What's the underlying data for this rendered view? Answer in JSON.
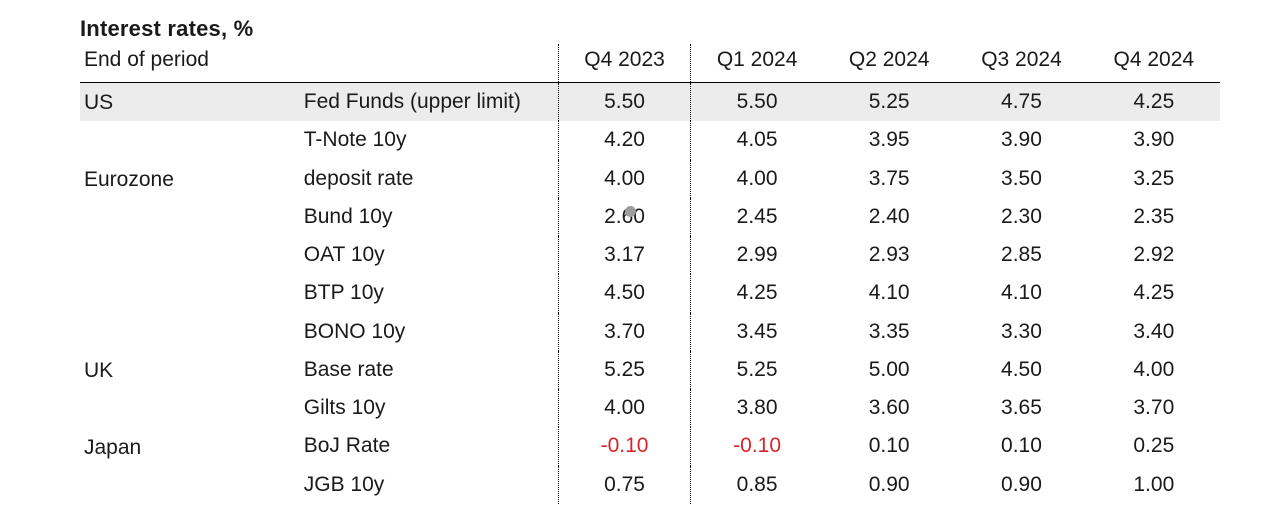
{
  "title": "Interest rates, %",
  "subhead": "End of period",
  "periods": [
    "Q4 2023",
    "Q1 2024",
    "Q2 2024",
    "Q3 2024",
    "Q4 2024"
  ],
  "colors": {
    "text": "#1a1a1a",
    "neg": "#d62728",
    "shade": "#ececec",
    "marker": "#9c9c9c",
    "line": "#000000",
    "bg": "#ffffff"
  },
  "regions": {
    "us": "US",
    "ez": "Eurozone",
    "uk": "UK",
    "jp": "Japan"
  },
  "rows": {
    "fedfunds": {
      "label": "Fed Funds (upper limit)",
      "v": [
        "5.50",
        "5.50",
        "5.25",
        "4.75",
        "4.25"
      ]
    },
    "tnote": {
      "label": "T-Note 10y",
      "v": [
        "4.20",
        "4.05",
        "3.95",
        "3.90",
        "3.90"
      ]
    },
    "deposit": {
      "label": "deposit rate",
      "v": [
        "4.00",
        "4.00",
        "3.75",
        "3.50",
        "3.25"
      ]
    },
    "bund": {
      "label": "Bund 10y",
      "v": [
        "2.60",
        "2.45",
        "2.40",
        "2.30",
        "2.35"
      ]
    },
    "oat": {
      "label": "OAT 10y",
      "v": [
        "3.17",
        "2.99",
        "2.93",
        "2.85",
        "2.92"
      ]
    },
    "btp": {
      "label": "BTP 10y",
      "v": [
        "4.50",
        "4.25",
        "4.10",
        "4.10",
        "4.25"
      ]
    },
    "bono": {
      "label": "BONO 10y",
      "v": [
        "3.70",
        "3.45",
        "3.35",
        "3.30",
        "3.40"
      ]
    },
    "base": {
      "label": "Base rate",
      "v": [
        "5.25",
        "5.25",
        "5.00",
        "4.50",
        "4.00"
      ]
    },
    "gilts": {
      "label": "Gilts 10y",
      "v": [
        "4.00",
        "3.80",
        "3.60",
        "3.65",
        "3.70"
      ]
    },
    "boj": {
      "label": "BoJ Rate",
      "v": [
        "-0.10",
        "-0.10",
        "0.10",
        "0.10",
        "0.25"
      ]
    },
    "jgb": {
      "label": "JGB 10y",
      "v": [
        "0.75",
        "0.85",
        "0.90",
        "0.90",
        "1.00"
      ]
    }
  }
}
